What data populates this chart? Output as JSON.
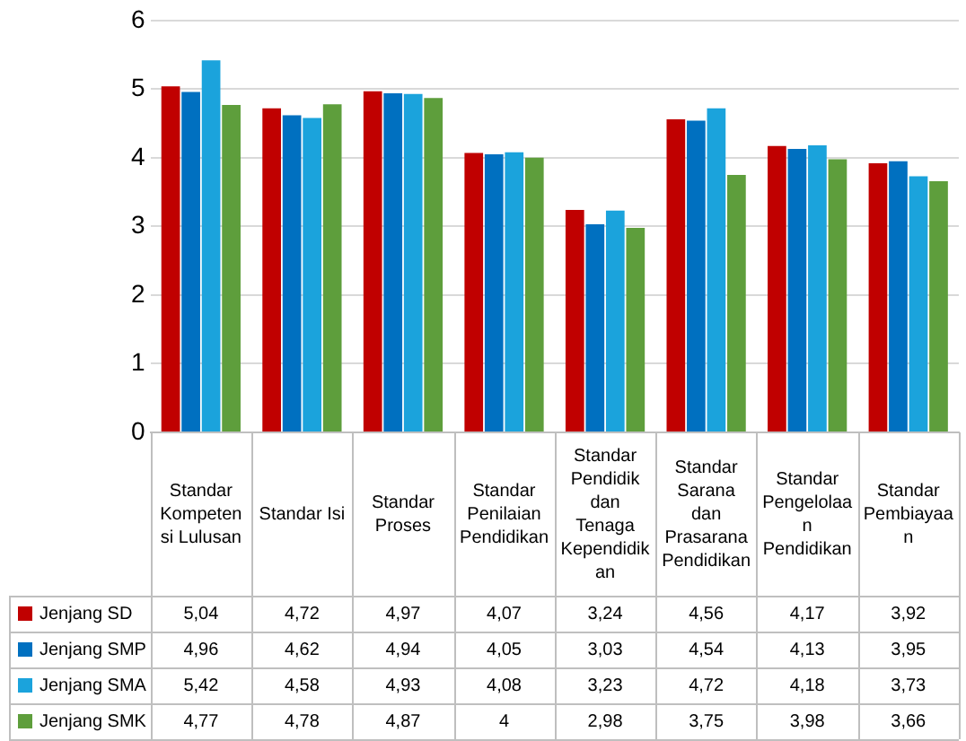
{
  "chart_data": {
    "type": "bar",
    "categories": [
      "Standar Kompetensi Lulusan",
      "Standar Isi",
      "Standar Proses",
      "Standar Penilaian Pendidikan",
      "Standar Pendidik dan Tenaga Kependidikan",
      "Standar Sarana dan Prasarana Pendidikan",
      "Standar Pengelolaan Pendidikan",
      "Standar Pembiayaan"
    ],
    "series": [
      {
        "name": "Jenjang SD",
        "color": "#c00000",
        "values": [
          5.04,
          4.72,
          4.97,
          4.07,
          3.24,
          4.56,
          4.17,
          3.92
        ],
        "value_labels": [
          "5,04",
          "4,72",
          "4,97",
          "4,07",
          "3,24",
          "4,56",
          "4,17",
          "3,92"
        ]
      },
      {
        "name": "Jenjang SMP",
        "color": "#0070c0",
        "values": [
          4.96,
          4.62,
          4.94,
          4.05,
          3.03,
          4.54,
          4.13,
          3.95
        ],
        "value_labels": [
          "4,96",
          "4,62",
          "4,94",
          "4,05",
          "3,03",
          "4,54",
          "4,13",
          "3,95"
        ]
      },
      {
        "name": "Jenjang SMA",
        "color": "#1ba3dc",
        "values": [
          5.42,
          4.58,
          4.93,
          4.08,
          3.23,
          4.72,
          4.18,
          3.73
        ],
        "value_labels": [
          "5,42",
          "4,58",
          "4,93",
          "4,08",
          "3,23",
          "4,72",
          "4,18",
          "3,73"
        ]
      },
      {
        "name": "Jenjang SMK",
        "color": "#5e9e3c",
        "values": [
          4.77,
          4.78,
          4.87,
          4,
          2.98,
          3.75,
          3.98,
          3.66
        ],
        "value_labels": [
          "4,77",
          "4,78",
          "4,87",
          "4",
          "2,98",
          "3,75",
          "3,98",
          "3,66"
        ]
      }
    ],
    "ylim": [
      0,
      6
    ],
    "yticks": [
      0,
      1,
      2,
      3,
      4,
      5,
      6
    ],
    "grid": "y",
    "legend": "bottom"
  }
}
